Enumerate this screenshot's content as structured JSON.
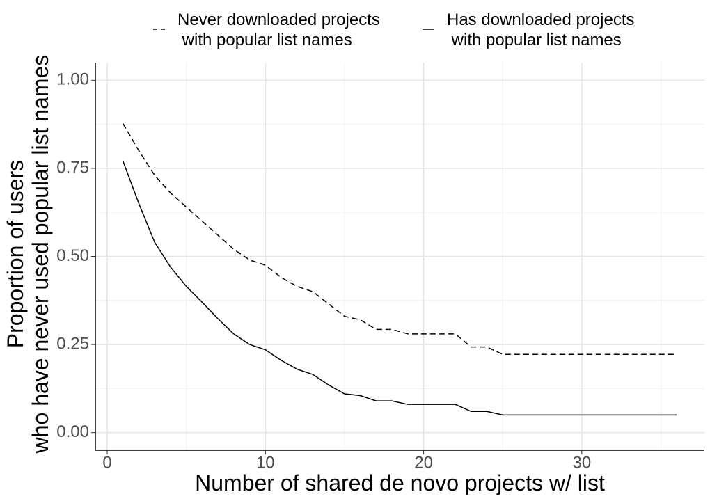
{
  "chart_data": {
    "type": "line",
    "x_label": "Number of shared de novo projects w/ list",
    "y_label": "Proportion of users\nwho have never used popular list names",
    "x": [
      1,
      2,
      3,
      4,
      5,
      6,
      7,
      8,
      9,
      10,
      11,
      12,
      13,
      14,
      15,
      16,
      17,
      18,
      19,
      20,
      21,
      22,
      23,
      24,
      25,
      26,
      27,
      28,
      29,
      30,
      31,
      32,
      33,
      34,
      35,
      36
    ],
    "series": [
      {
        "name": "Never downloaded projects\n with popular list names",
        "color": "#000000",
        "linetype": "dashed",
        "values": [
          0.877,
          0.8,
          0.73,
          0.68,
          0.64,
          0.6,
          0.56,
          0.52,
          0.49,
          0.475,
          0.44,
          0.415,
          0.4,
          0.365,
          0.33,
          0.32,
          0.293,
          0.293,
          0.28,
          0.28,
          0.28,
          0.28,
          0.243,
          0.243,
          0.222,
          0.222,
          0.222,
          0.222,
          0.222,
          0.222,
          0.222,
          0.222,
          0.222,
          0.222,
          0.222,
          0.222
        ]
      },
      {
        "name": "Has downloaded projects\n with popular list names",
        "color": "#000000",
        "linetype": "solid",
        "values": [
          0.77,
          0.65,
          0.54,
          0.47,
          0.415,
          0.37,
          0.323,
          0.28,
          0.25,
          0.235,
          0.205,
          0.18,
          0.165,
          0.135,
          0.11,
          0.105,
          0.09,
          0.09,
          0.08,
          0.08,
          0.08,
          0.08,
          0.06,
          0.06,
          0.05,
          0.05,
          0.05,
          0.05,
          0.05,
          0.05,
          0.05,
          0.05,
          0.05,
          0.05,
          0.05,
          0.05
        ]
      }
    ],
    "xlim": [
      -0.75,
      37.75
    ],
    "xticks": [
      0,
      10,
      20,
      30
    ],
    "x_minor_ticks": [
      5,
      15,
      25,
      35
    ],
    "ylim": [
      -0.05,
      1.05
    ],
    "yticks": [
      {
        "value": 0,
        "label": "0.00"
      },
      {
        "value": 0.25,
        "label": "0.25"
      },
      {
        "value": 0.5,
        "label": "0.50"
      },
      {
        "value": 0.75,
        "label": "0.75"
      },
      {
        "value": 1,
        "label": "1.00"
      }
    ],
    "y_minor_ticks": [
      0.125,
      0.375,
      0.625,
      0.875
    ],
    "grid": true,
    "legend_position": "top"
  }
}
